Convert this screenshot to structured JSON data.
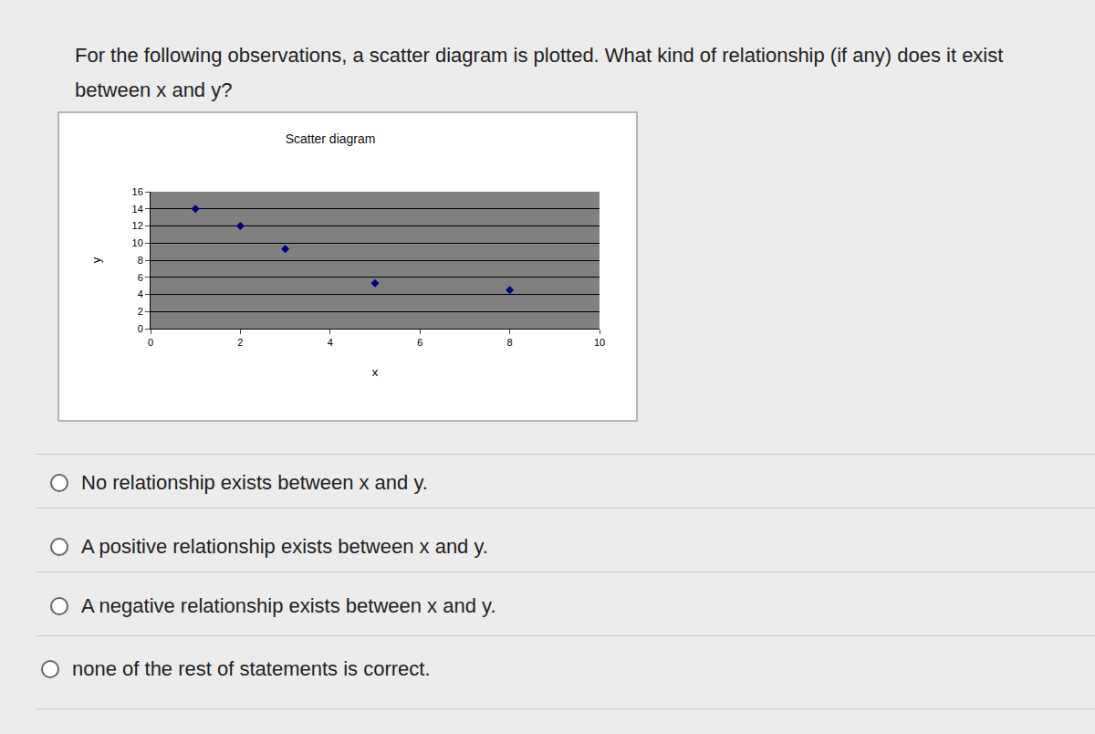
{
  "question": "For the following observations, a scatter diagram is plotted. What kind of relationship (if any) does it exist between x and y?",
  "options": [
    "No relationship exists between x and y.",
    "A positive relationship exists between x and y.",
    "A negative relationship exists between x and y.",
    "none of the rest of statements is correct."
  ],
  "chart_data": {
    "type": "scatter",
    "title": "Scatter diagram",
    "x_label": "x",
    "y_label": "y",
    "x": [
      1,
      2,
      3,
      5,
      8
    ],
    "values": [
      14,
      12,
      9.3,
      5.3,
      4.5
    ],
    "color": "#000080",
    "marker": "diamond",
    "xlim": [
      0,
      10
    ],
    "xticks": [
      0,
      2,
      4,
      6,
      8,
      10
    ],
    "ylim": [
      0,
      16
    ],
    "yticks": [
      0,
      2,
      4,
      6,
      8,
      10,
      12,
      14,
      16
    ],
    "grid": true
  }
}
